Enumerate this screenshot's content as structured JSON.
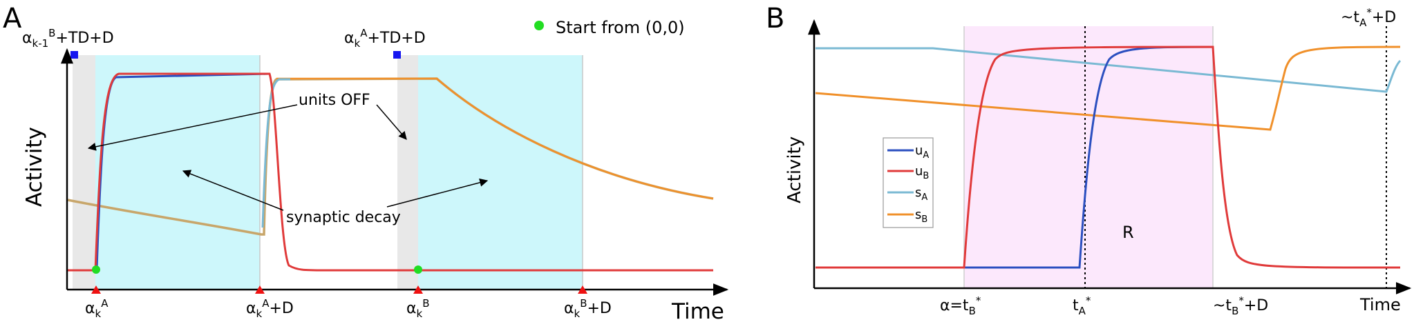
{
  "chart_data": [
    {
      "panel_label": "A",
      "type": "line",
      "xlabel": "Time",
      "ylabel": "Activity",
      "legend": {
        "label": "Start from (0,0)",
        "marker_color": "#22dd22",
        "placement": "top-right"
      },
      "top_labels": [
        {
          "id": "tl1",
          "base": "α",
          "sub": "k-1",
          "sup": "B",
          "rest": "+TD+D"
        },
        {
          "id": "tl2",
          "base": "α",
          "sub": "k",
          "sup": "A",
          "rest": "+TD+D"
        }
      ],
      "x_ticks": [
        {
          "id": "xt1",
          "x": 0.04,
          "base": "α",
          "sub": "k",
          "sup": "A",
          "rest": ""
        },
        {
          "id": "xt2",
          "x": 0.29,
          "base": "α",
          "sub": "k",
          "sup": "A",
          "rest": "+D"
        },
        {
          "id": "xt3",
          "x": 0.53,
          "base": "α",
          "sub": "k",
          "sup": "B",
          "rest": ""
        },
        {
          "id": "xt4",
          "x": 0.78,
          "base": "α",
          "sub": "k",
          "sup": "B",
          "rest": "+D"
        }
      ],
      "annotations": [
        {
          "id": "units-off",
          "text": "units OFF"
        },
        {
          "id": "syn-decay",
          "text": "synaptic decay"
        }
      ],
      "regions": [
        {
          "kind": "gray",
          "x0": 0.01,
          "x1": 0.04
        },
        {
          "kind": "cyan",
          "x0": 0.04,
          "x1": 0.29
        },
        {
          "kind": "gray",
          "x0": 0.5,
          "x1": 0.53
        },
        {
          "kind": "cyan",
          "x0": 0.53,
          "x1": 0.78
        }
      ],
      "series_colors": {
        "red": "#e03a3a",
        "blue": "#2b4fc0",
        "lightblue": "#7ab9d3",
        "orange": "#f0902a",
        "tan": "#c8a66a"
      }
    },
    {
      "panel_label": "B",
      "type": "line",
      "xlabel": "Time",
      "ylabel": "Activity",
      "region_label": "R",
      "legend_entries": [
        {
          "id": "uA",
          "base": "u",
          "sub": "A",
          "color": "#2b4fc0"
        },
        {
          "id": "uB",
          "base": "u",
          "sub": "B",
          "color": "#e03a3a"
        },
        {
          "id": "sA",
          "base": "s",
          "sub": "A",
          "color": "#7ab9d3"
        },
        {
          "id": "sB",
          "base": "s",
          "sub": "B",
          "color": "#f0902a"
        }
      ],
      "x_ticks": [
        {
          "id": "bt1",
          "base": "α=t",
          "sub": "",
          "sup": "B",
          "supstar": "*",
          "rest": ""
        },
        {
          "id": "bt2",
          "base": "t",
          "sub": "",
          "sup": "A",
          "supstar": "*",
          "rest": ""
        },
        {
          "id": "bt3",
          "base": "~t",
          "sub": "",
          "sup": "B",
          "supstar": "*",
          "rest": "+D"
        },
        {
          "id": "bt4",
          "base": "~t",
          "sub": "",
          "sup": "A",
          "supstar": "*",
          "rest": "+D"
        }
      ]
    }
  ]
}
